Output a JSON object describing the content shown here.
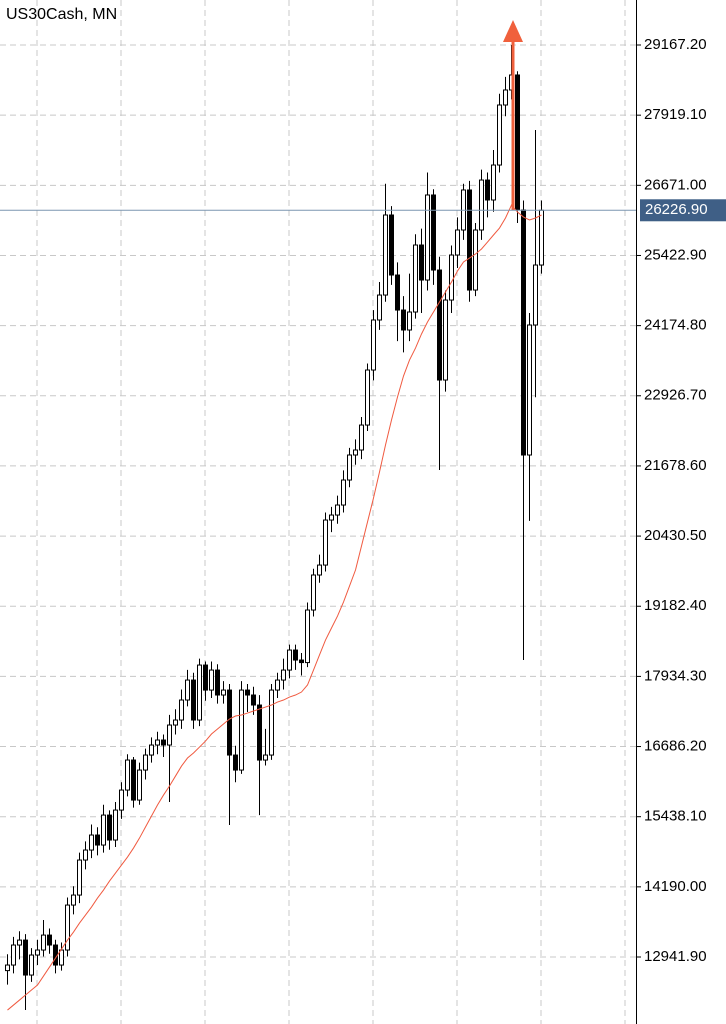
{
  "chart_data": {
    "type": "candlestick",
    "title": "US30Cash, MN",
    "ylim": [
      11750,
      29968
    ],
    "yticks": [
      {
        "value": 29167.2,
        "label": "29167.20"
      },
      {
        "value": 27919.1,
        "label": "27919.10"
      },
      {
        "value": 26671.0,
        "label": "26671.00"
      },
      {
        "value": 25422.9,
        "label": "25422.90"
      },
      {
        "value": 24174.8,
        "label": "24174.80"
      },
      {
        "value": 22926.7,
        "label": "22926.70"
      },
      {
        "value": 21678.6,
        "label": "21678.60"
      },
      {
        "value": 20430.5,
        "label": "20430.50"
      },
      {
        "value": 19182.4,
        "label": "19182.40"
      },
      {
        "value": 17934.3,
        "label": "17934.30"
      },
      {
        "value": 16686.2,
        "label": "16686.20"
      },
      {
        "value": 15438.1,
        "label": "15438.10"
      },
      {
        "value": 14190.0,
        "label": "14190.00"
      },
      {
        "value": 12941.9,
        "label": "12941.90"
      }
    ],
    "grid": true,
    "current_price": {
      "value": 26226.9,
      "label": "26226.90"
    },
    "current_price_color": "#7b95b0",
    "current_label_color": "#3f5f86",
    "bull_color": "#ffffff",
    "bear_color": "#000000",
    "open": [
      12700,
      12799,
      13155,
      13243,
      12621,
      12977,
      13066,
      13332,
      13155,
      12799,
      13066,
      13866,
      14044,
      14667,
      14845,
      15112,
      14934,
      15467,
      15023,
      15556,
      15912,
      16446,
      15734,
      16268,
      16535,
      16713,
      16802,
      16713,
      17069,
      17158,
      17514,
      17869,
      17158,
      18136,
      17691,
      18047,
      17603,
      17691,
      16535,
      16268,
      17691,
      17603,
      17425,
      16446,
      16535,
      17691,
      17869,
      18047,
      18403,
      18225,
      18180,
      19115,
      19738,
      19915,
      20716,
      20805,
      20983,
      21428,
      21873,
      21962,
      22406,
      23385,
      24275,
      24719,
      26143,
      25075,
      24452,
      24097,
      24417,
      25609,
      24986,
      26499,
      25164,
      23207,
      24630,
      25431,
      25876,
      26588,
      24808,
      25876,
      26765,
      26410,
      27032,
      28100,
      28367,
      28634,
      26232,
      21873,
      24186,
      25253
    ],
    "high": [
      12990,
      13300,
      13400,
      13350,
      13100,
      13250,
      13600,
      13450,
      13250,
      13200,
      14000,
      14200,
      14800,
      15000,
      15300,
      15250,
      15650,
      15550,
      15700,
      16050,
      16550,
      16500,
      16400,
      16650,
      16850,
      16950,
      16900,
      17250,
      17350,
      17700,
      18050,
      18000,
      18250,
      18200,
      18200,
      18150,
      17850,
      17800,
      16700,
      17850,
      17800,
      17750,
      17600,
      17000,
      17800,
      18000,
      18250,
      18500,
      18500,
      18350,
      19250,
      19850,
      20100,
      20850,
      20950,
      21150,
      21600,
      22000,
      22150,
      22550,
      23500,
      24450,
      24950,
      26700,
      26300,
      25300,
      24700,
      25100,
      25800,
      25900,
      26900,
      26600,
      25400,
      24800,
      25600,
      26100,
      26700,
      26750,
      26000,
      26950,
      26900,
      27300,
      28300,
      28600,
      29167,
      28700,
      26400,
      24400,
      27655,
      26400
    ],
    "low": [
      12450,
      12650,
      12900,
      11998,
      12500,
      12800,
      12950,
      13000,
      12650,
      12700,
      12950,
      13700,
      13900,
      14500,
      14700,
      14750,
      14800,
      14850,
      14900,
      15400,
      15800,
      15600,
      15650,
      16100,
      16400,
      16550,
      16500,
      15700,
      16900,
      17000,
      17400,
      17000,
      17050,
      17500,
      17550,
      17450,
      17450,
      15290,
      16050,
      16200,
      17300,
      17250,
      15467,
      16350,
      16450,
      17550,
      17700,
      17900,
      18050,
      17950,
      18100,
      19000,
      19600,
      19800,
      20500,
      20650,
      20850,
      21300,
      21700,
      21800,
      22300,
      23200,
      24100,
      24600,
      24900,
      23900,
      23700,
      23900,
      24300,
      24400,
      24800,
      24900,
      21607,
      23000,
      24400,
      25200,
      25700,
      24600,
      24700,
      25700,
      26100,
      26200,
      26900,
      27900,
      28200,
      26000,
      18225,
      20700,
      22900,
      25100
    ],
    "close": [
      12799,
      13155,
      13243,
      12621,
      12977,
      13066,
      13332,
      13155,
      12799,
      13066,
      13866,
      14044,
      14667,
      14845,
      15112,
      14934,
      15467,
      15023,
      15556,
      15912,
      16446,
      15734,
      16268,
      16535,
      16713,
      16802,
      16713,
      17069,
      17158,
      17514,
      17869,
      17158,
      18136,
      17691,
      18047,
      17603,
      17691,
      16535,
      16268,
      17691,
      17603,
      17425,
      16446,
      16535,
      17691,
      17869,
      18047,
      18403,
      18225,
      18180,
      19115,
      19738,
      19915,
      20716,
      20805,
      20983,
      21428,
      21873,
      21962,
      22406,
      23385,
      24275,
      24719,
      26143,
      25075,
      24452,
      24097,
      24417,
      25609,
      24986,
      26499,
      25164,
      23207,
      24630,
      25431,
      25876,
      26588,
      24808,
      25876,
      26765,
      26410,
      27032,
      28100,
      28367,
      28634,
      26232,
      21873,
      24186,
      25253,
      26226.9
    ],
    "moving_average": {
      "color": "#f05a40",
      "values": [
        11998,
        12087,
        12176,
        12265,
        12354,
        12443,
        12603,
        12763,
        12923,
        13083,
        13243,
        13386,
        13546,
        13688,
        13830,
        13990,
        14133,
        14293,
        14435,
        14578,
        14720,
        14880,
        15058,
        15254,
        15450,
        15646,
        15823,
        15984,
        16161,
        16339,
        16482,
        16571,
        16677,
        16784,
        16909,
        16998,
        17087,
        17176,
        17229,
        17247,
        17282,
        17318,
        17354,
        17389,
        17425,
        17478,
        17514,
        17567,
        17603,
        17656,
        17781,
        18047,
        18315,
        18581,
        18795,
        19008,
        19257,
        19542,
        19827,
        20254,
        20681,
        21108,
        21570,
        22051,
        22495,
        22905,
        23278,
        23563,
        23776,
        24026,
        24239,
        24417,
        24595,
        24773,
        24951,
        25146,
        25307,
        25377,
        25449,
        25538,
        25662,
        25787,
        25911,
        26090,
        26321,
        26196,
        26107,
        26054,
        26090,
        26143
      ]
    }
  }
}
